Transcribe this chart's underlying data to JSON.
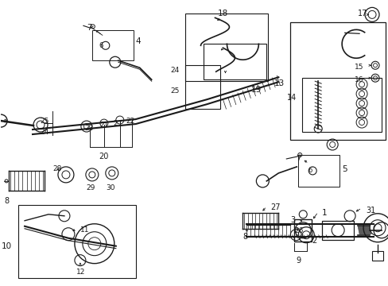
{
  "bg_color": "#ffffff",
  "line_color": "#1a1a1a",
  "fig_width": 4.89,
  "fig_height": 3.6,
  "dpi": 100,
  "title_color": "#000000"
}
